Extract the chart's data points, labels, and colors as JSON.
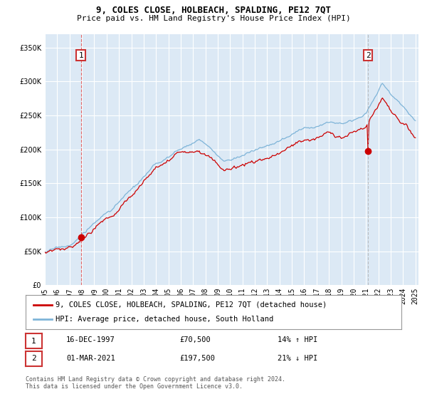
{
  "title": "9, COLES CLOSE, HOLBEACH, SPALDING, PE12 7QT",
  "subtitle": "Price paid vs. HM Land Registry's House Price Index (HPI)",
  "bg_color": "#dce9f5",
  "red_line_label": "9, COLES CLOSE, HOLBEACH, SPALDING, PE12 7QT (detached house)",
  "blue_line_label": "HPI: Average price, detached house, South Holland",
  "sale1_date": "16-DEC-1997",
  "sale1_price_str": "£70,500",
  "sale1_hpi_str": "14% ↑ HPI",
  "sale2_date": "01-MAR-2021",
  "sale2_price_str": "£197,500",
  "sale2_hpi_str": "21% ↓ HPI",
  "copyright_text": "Contains HM Land Registry data © Crown copyright and database right 2024.\nThis data is licensed under the Open Government Licence v3.0.",
  "ylim": [
    0,
    370000
  ],
  "yticks": [
    0,
    50000,
    100000,
    150000,
    200000,
    250000,
    300000,
    350000
  ],
  "sale1_year": 1997,
  "sale1_month": 12,
  "sale1_price": 70500,
  "sale2_year": 2021,
  "sale2_month": 3,
  "sale2_price": 197500,
  "xstart_year": 1995,
  "xend_year": 2025,
  "red_color": "#cc0000",
  "blue_color": "#7eb4d8",
  "vline1_color": "#dd4444",
  "vline2_color": "#aaaaaa",
  "box_edge_color": "#cc3333",
  "grid_color": "white",
  "title_fontsize": 9,
  "subtitle_fontsize": 8,
  "tick_fontsize": 7,
  "legend_fontsize": 7.5,
  "annotation_fontsize": 7.5,
  "copyright_fontsize": 6
}
